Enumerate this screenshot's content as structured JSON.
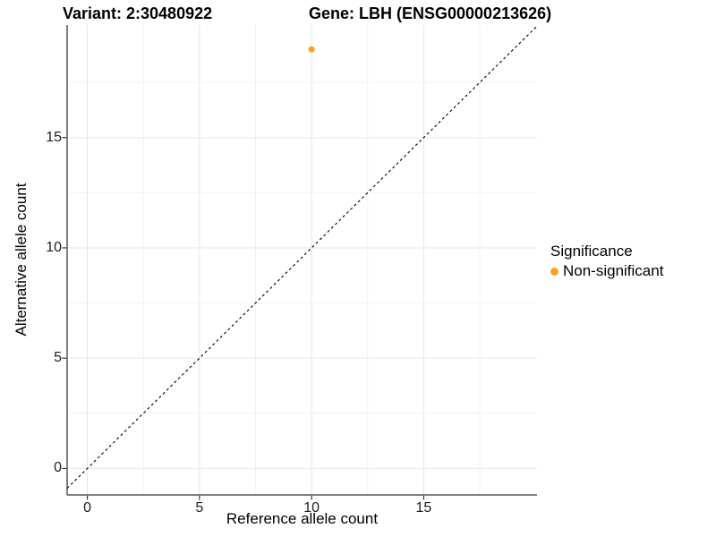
{
  "titles": {
    "variant": "Variant: 2:30480922",
    "gene": "Gene: LBH (ENSG00000213626)"
  },
  "chart_data": {
    "type": "scatter",
    "xlabel": "Reference allele count",
    "ylabel": "Alternative allele count",
    "x_domain": [
      -0.9,
      20.05
    ],
    "y_domain": [
      -1.2,
      20.1
    ],
    "x_breaks": [
      0,
      5,
      10,
      15
    ],
    "y_breaks": [
      0,
      5,
      10,
      15
    ],
    "x_minor_breaks": [
      2.5,
      7.5,
      12.5,
      17.5
    ],
    "y_minor_breaks": [
      2.5,
      7.5,
      12.5,
      17.5
    ],
    "grid": true,
    "points": [
      {
        "x": 10,
        "y": 19,
        "series": "Non-significant"
      }
    ],
    "reference_line": {
      "kind": "identity",
      "slope": 1,
      "intercept": 0,
      "style": "dashed",
      "color": "#000000"
    },
    "legend": {
      "title": "Significance",
      "position": "right",
      "items": [
        {
          "label": "Non-significant",
          "color": "#FAA21E"
        }
      ]
    },
    "colors": {
      "grid_major": "#e5e5e5",
      "grid_minor": "#f2f2f2",
      "axis_line": "#575757",
      "tick_mark": "#333333",
      "tick_text": "#1c1c1c"
    }
  }
}
